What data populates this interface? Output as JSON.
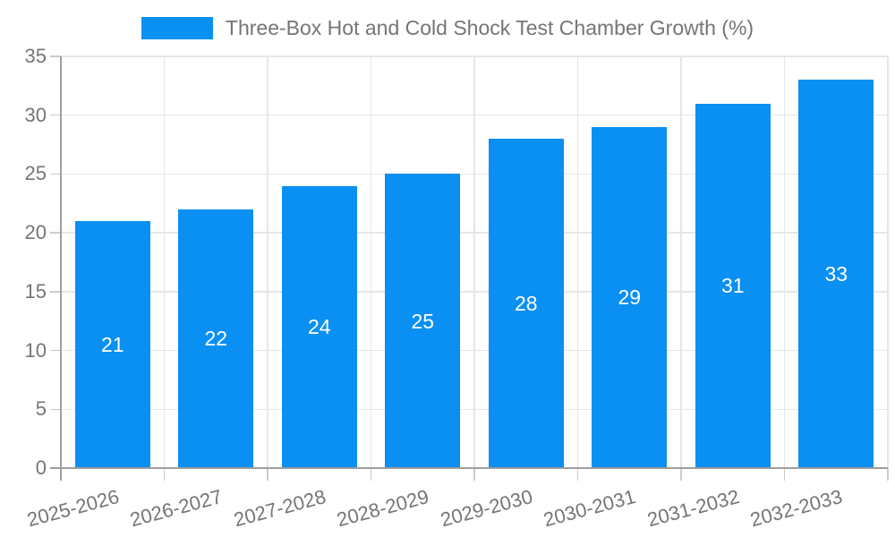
{
  "chart_data": {
    "type": "bar",
    "legend": "Three-Box Hot and Cold Shock Test Chamber Growth (%)",
    "categories": [
      "2025-2026",
      "2026-2027",
      "2027-2028",
      "2028-2029",
      "2029-2030",
      "2030-2031",
      "2031-2032",
      "2032-2033"
    ],
    "values": [
      21,
      22,
      24,
      25,
      28,
      29,
      31,
      33
    ],
    "bar_labels": [
      "21",
      "22",
      "24",
      "25",
      "28",
      "29",
      "31",
      "33"
    ],
    "yticks": [
      0,
      5,
      10,
      15,
      20,
      25,
      30,
      35
    ],
    "ylim": [
      0,
      35
    ],
    "xlabel": "",
    "ylabel": "",
    "grid": true,
    "legend_position": "top-center",
    "colors": {
      "bar": "#0a8ff2",
      "bar_label_text": "#ffffff",
      "axis_text": "#757575",
      "grid_line": "#e6e6e6",
      "tick_line": "#cccccc",
      "axis_line": "#9e9e9e",
      "background": "#ffffff"
    }
  }
}
